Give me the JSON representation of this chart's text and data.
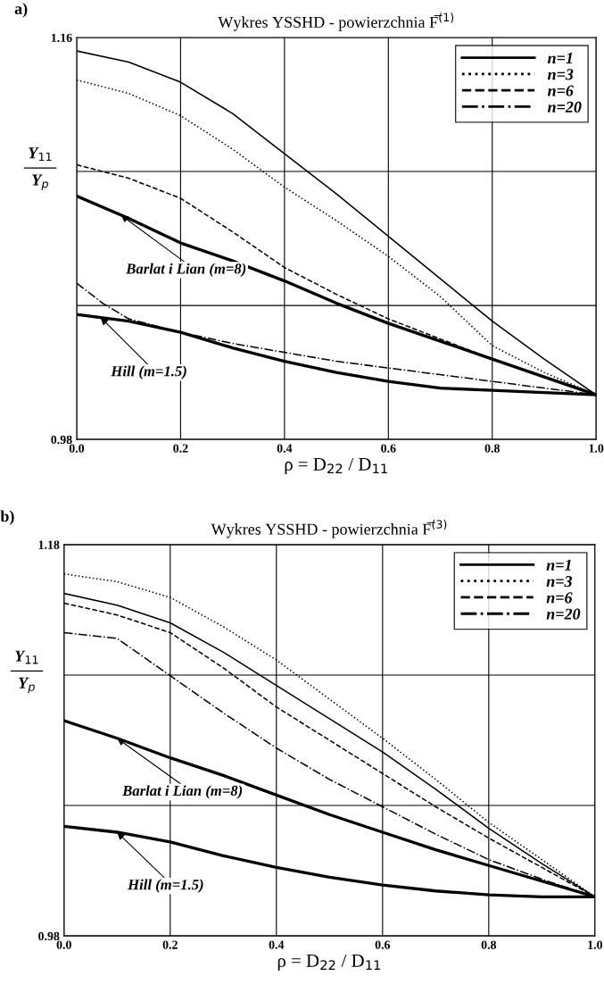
{
  "chart_data": [
    {
      "type": "line",
      "title": "Wykres YSSHD - powierzchnia F̅$^{(1)}$",
      "xlabel": "ρ = D$_{22}$ / D$_{11}$",
      "ylabel": "Y$_{11}$\n――\nY$_{p}$",
      "x": [
        0.0,
        0.1,
        0.2,
        0.3,
        0.4,
        0.5,
        0.6,
        0.7,
        0.8,
        0.9,
        1.0
      ],
      "series": [
        {
          "name": "n=1",
          "color": "#000000",
          "line_style": "solid",
          "values": [
            1.154,
            1.149,
            1.14,
            1.126,
            1.108,
            1.09,
            1.071,
            1.052,
            1.033,
            1.016,
            1.0
          ]
        },
        {
          "name": "n=3",
          "color": "#000000",
          "line_style": "dotted",
          "values": [
            1.141,
            1.135,
            1.125,
            1.11,
            1.093,
            1.078,
            1.062,
            1.044,
            1.022,
            1.01,
            1.0
          ]
        },
        {
          "name": "n=6",
          "color": "#000000",
          "line_style": "dashed",
          "values": [
            1.103,
            1.097,
            1.088,
            1.073,
            1.057,
            1.045,
            1.034,
            1.025,
            1.016,
            1.008,
            1.0
          ]
        },
        {
          "name": "n=20",
          "color": "#000000",
          "line_style": "dashdot",
          "x": [
            0.0,
            0.05,
            0.1,
            0.2,
            0.3,
            0.4,
            0.5,
            0.6,
            0.7,
            0.8,
            0.9,
            1.0
          ],
          "values": [
            1.05,
            1.041,
            1.034,
            1.028,
            1.023,
            1.019,
            1.015,
            1.012,
            1.009,
            1.006,
            1.003,
            1.0
          ]
        },
        {
          "color": "#000000",
          "line_style": "solid",
          "values": [
            1.089,
            1.079,
            1.068,
            1.06,
            1.051,
            1.041,
            1.032,
            1.024,
            1.016,
            1.008,
            1.0
          ]
        },
        {
          "color": "#000000",
          "line_style": "solid",
          "values": [
            1.036,
            1.033,
            1.028,
            1.021,
            1.015,
            1.01,
            1.006,
            1.003,
            1.002,
            1.001,
            1.0
          ]
        }
      ],
      "xlim": [
        0,
        1
      ],
      "ylim": [
        0.98,
        1.16
      ],
      "xticks": [
        {
          "value": 0,
          "label": "0.0"
        },
        {
          "value": 0.2,
          "label": "0.2"
        },
        {
          "value": 0.4,
          "label": "0.4"
        },
        {
          "value": 0.6,
          "label": "0.6"
        },
        {
          "value": 0.8,
          "label": "0.8"
        },
        {
          "value": 1.0,
          "label": "1.0"
        }
      ],
      "yticks": [
        0.98,
        {
          "value": 1.04,
          "label": null
        },
        {
          "value": 1.1,
          "label": null
        },
        1.16
      ],
      "grid": true,
      "legend": "top right",
      "annotations": [
        "a)",
        {
          "text": "Barlat i Lian (m=8)",
          "x": 0.085,
          "y": 1.0805
        },
        {
          "text": "Hill (m=1.5)",
          "x": 0.046,
          "y": 1.0346
        }
      ]
    },
    {
      "type": "line",
      "title": "Wykres YSSHD - powierzchnia F̅$^{(3)}$",
      "xlabel": "ρ = D$_{22}$ / D$_{11}$",
      "ylabel": "Y$_{11}$\n――\nY$_{p}$",
      "x": [
        0.0,
        0.1,
        0.2,
        0.3,
        0.4,
        0.5,
        0.6,
        0.7,
        0.8,
        0.9,
        1.0
      ],
      "series": [
        {
          "name": "n=1",
          "color": "#000000",
          "line_style": "solid",
          "values": [
            1.155,
            1.149,
            1.14,
            1.125,
            1.108,
            1.091,
            1.074,
            1.055,
            1.035,
            1.017,
            1.0
          ]
        },
        {
          "name": "n=3",
          "color": "#000000",
          "line_style": "dotted",
          "values": [
            1.165,
            1.161,
            1.153,
            1.138,
            1.121,
            1.101,
            1.081,
            1.06,
            1.038,
            1.019,
            1.0
          ]
        },
        {
          "name": "n=6",
          "color": "#000000",
          "line_style": "dashed",
          "values": [
            1.15,
            1.144,
            1.135,
            1.117,
            1.097,
            1.08,
            1.063,
            1.046,
            1.03,
            1.015,
            1.0
          ]
        },
        {
          "name": "n=20",
          "color": "#000000",
          "line_style": "dashdot",
          "values": [
            1.135,
            1.132,
            1.113,
            1.094,
            1.076,
            1.06,
            1.046,
            1.032,
            1.019,
            1.009,
            1.0
          ]
        },
        {
          "color": "#000000",
          "line_style": "solid",
          "values": [
            1.09,
            1.081,
            1.071,
            1.062,
            1.052,
            1.042,
            1.033,
            1.024,
            1.016,
            1.008,
            1.0
          ]
        },
        {
          "color": "#000000",
          "line_style": "solid",
          "values": [
            1.036,
            1.033,
            1.028,
            1.021,
            1.015,
            1.01,
            1.006,
            1.003,
            1.001,
            1.0,
            1.0
          ]
        }
      ],
      "xlim": [
        0,
        1
      ],
      "ylim": [
        0.98,
        1.18
      ],
      "xticks": [
        {
          "value": 0,
          "label": "0.0"
        },
        {
          "value": 0.2,
          "label": "0.2"
        },
        {
          "value": 0.4,
          "label": "0.4"
        },
        {
          "value": 0.6,
          "label": "0.6"
        },
        {
          "value": 0.8,
          "label": "0.8"
        },
        {
          "value": 1.0,
          "label": "1.0"
        }
      ],
      "yticks": [
        0.98,
        {
          "value": 1.0467,
          "label": null
        },
        {
          "value": 1.1133,
          "label": null
        },
        1.18
      ],
      "grid": true,
      "legend": "top right",
      "annotations": [
        "b)",
        {
          "text": "Barlat i Lian (m=8)",
          "x": 0.1,
          "y": 1.081
        },
        {
          "text": "Hill (m=1.5)",
          "x": 0.1,
          "y": 1.033
        }
      ]
    }
  ]
}
